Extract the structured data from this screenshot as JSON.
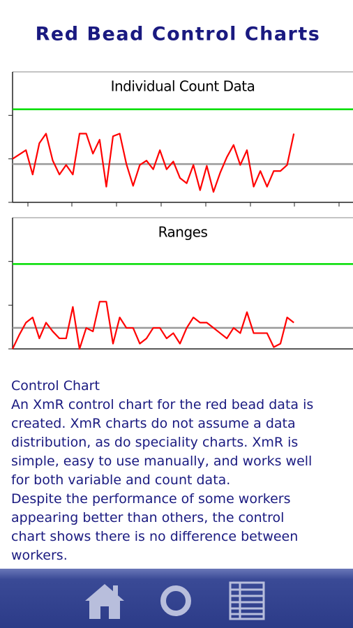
{
  "title": "Red Bead Control Charts",
  "chart_data": [
    {
      "type": "line",
      "title": "Individual Count Data",
      "ylim": [
        0,
        15
      ],
      "yticks": [
        0,
        5,
        10
      ],
      "series": [
        {
          "color": "#ff0000",
          "values": [
            5.0,
            5.5,
            6.0,
            3.2,
            6.8,
            7.9,
            4.8,
            3.2,
            4.3,
            3.2,
            7.9,
            7.9,
            5.6,
            7.2,
            1.8,
            7.6,
            7.9,
            4.4,
            1.9,
            4.3,
            4.8,
            3.8,
            6.0,
            3.8,
            4.7,
            2.8,
            2.2,
            4.3,
            1.4,
            4.2,
            1.2,
            3.4,
            5.2,
            6.6,
            4.3,
            6.0,
            1.8,
            3.6,
            1.8,
            3.6,
            3.6,
            4.3,
            7.9
          ]
        }
      ],
      "lines": [
        {
          "value": 10.7,
          "color": "#00dd00"
        },
        {
          "value": 4.4,
          "color": "#999999"
        }
      ]
    },
    {
      "type": "line",
      "title": "Ranges",
      "ylim": [
        0,
        15
      ],
      "yticks": [
        0,
        5,
        10
      ],
      "series": [
        {
          "color": "#ff0000",
          "values": [
            0,
            1.6,
            3.0,
            3.6,
            1.2,
            3.0,
            2.0,
            1.2,
            1.2,
            4.8,
            0,
            2.4,
            2.0,
            5.4,
            5.4,
            0.6,
            3.6,
            2.4,
            2.4,
            0.6,
            1.2,
            2.4,
            2.4,
            1.2,
            1.8,
            0.6,
            2.4,
            3.6,
            3.0,
            3.0,
            2.4,
            1.8,
            1.2,
            2.4,
            1.8,
            4.2,
            1.8,
            1.8,
            1.8,
            0.2,
            0.6,
            3.6,
            3.0
          ]
        }
      ],
      "lines": [
        {
          "value": 9.7,
          "color": "#00dd00"
        },
        {
          "value": 2.4,
          "color": "#999999"
        }
      ]
    }
  ],
  "description": {
    "heading": "Control Chart",
    "paragraphs": [
      [
        "An XmR control chart for the red bead data is",
        "created. XmR charts do not assume a data",
        "distribution, as do speciality charts. XmR is",
        "simple, easy to use manually, and works well",
        "for both variable and count data."
      ],
      [
        "Despite the performance of some workers",
        "appearing better than others, the control",
        "chart shows there is no difference between",
        "workers."
      ]
    ]
  }
}
